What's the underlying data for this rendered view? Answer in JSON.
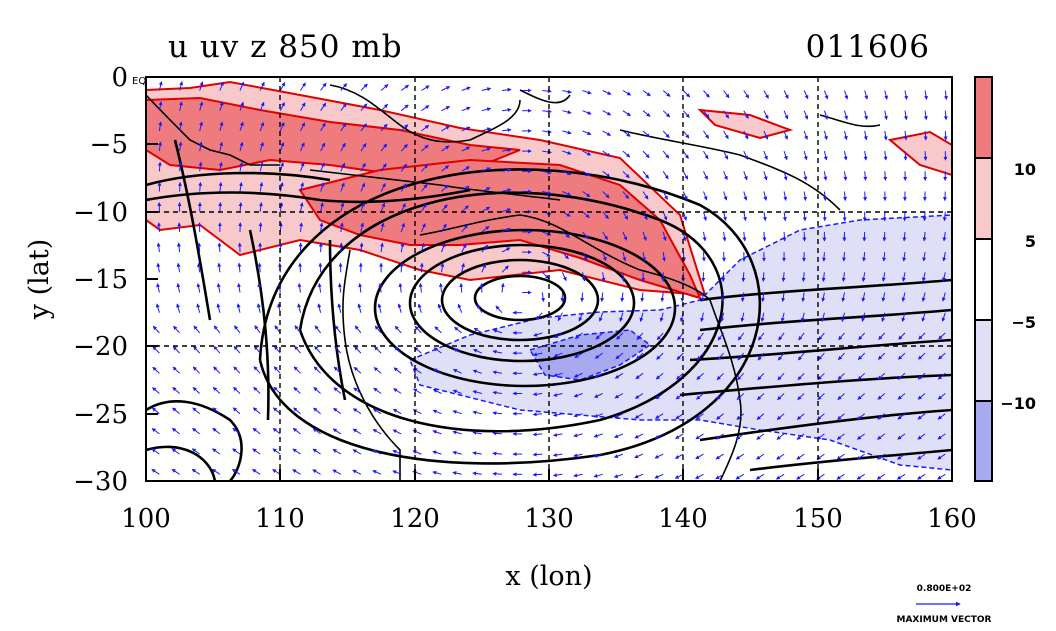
{
  "chart_data": {
    "type": "contour-map",
    "title": "u uv z 850 mb",
    "subtitle": "011606",
    "xlabel": "x (lon)",
    "ylabel": "y (lat)",
    "xlim": [
      100,
      160
    ],
    "ylim": [
      -30,
      0
    ],
    "x_ticks": [
      "100",
      "110",
      "120",
      "130",
      "140",
      "150",
      "160"
    ],
    "y_ticks": [
      "0",
      "−5",
      "−10",
      "−15",
      "−20",
      "−25",
      "−30"
    ],
    "eq_label": "EQ",
    "colorbar": {
      "levels": [
        -10,
        -5,
        5,
        10
      ],
      "tick_labels": [
        "10",
        "5",
        "−5",
        "−10"
      ],
      "colors": [
        "#ee7b7d",
        "#f7c9ca",
        "#ffffff",
        "#dfe0f7",
        "#a7aaf0"
      ]
    },
    "contours_z": {
      "center_lon": 128.0,
      "center_lat": -16.5,
      "color": "#000000"
    },
    "vector_reference": {
      "value": "0.800E+02",
      "label": "MAXIMUM VECTOR"
    },
    "colors": {
      "positive_strong": "#ee7b7d",
      "positive_weak": "#f7c9ca",
      "negative_weak": "#dfe0f7",
      "negative_strong": "#a7aaf0",
      "vectors": "#1a1aff",
      "pos_contour": "#e00000"
    },
    "grid": true
  }
}
